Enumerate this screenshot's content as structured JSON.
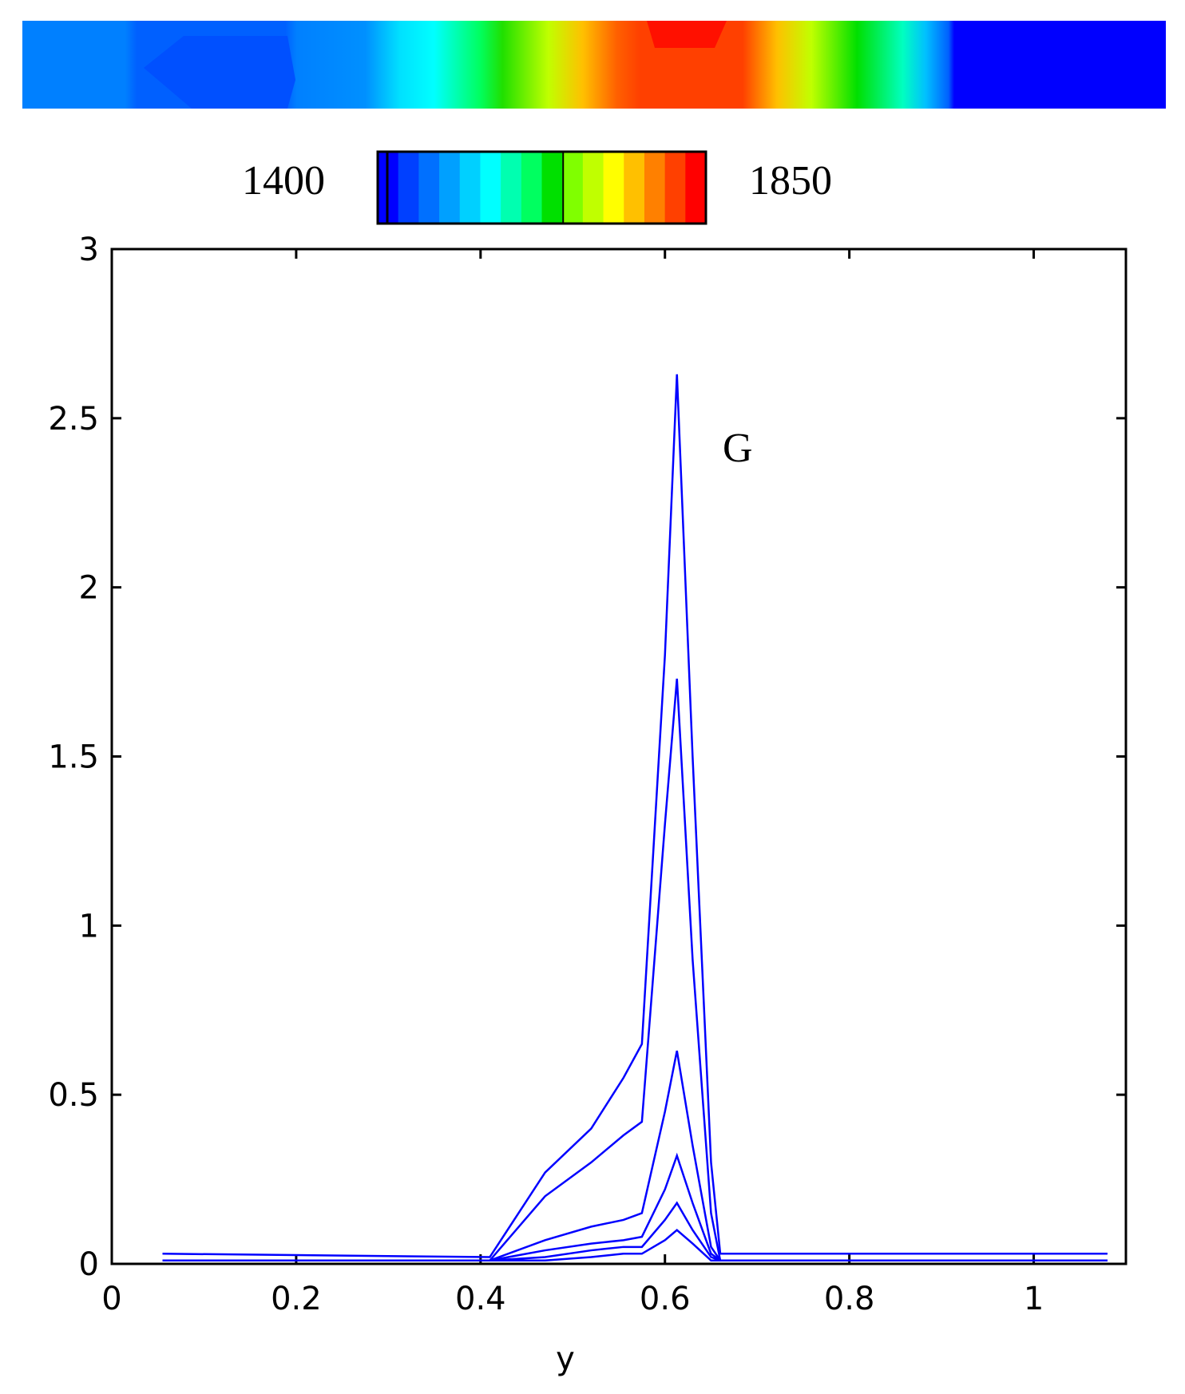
{
  "chart_data": {
    "type": "line",
    "xlabel": "y",
    "annotation": "G",
    "colorbar": {
      "min": 1400,
      "max": 1850,
      "colors": [
        "#0000ff",
        "#0040ff",
        "#0070ff",
        "#00a0ff",
        "#00d0ff",
        "#00ffff",
        "#00ffb0",
        "#00ff60",
        "#00e000",
        "#80ff00",
        "#c0ff00",
        "#ffff00",
        "#ffc000",
        "#ff8000",
        "#ff4000",
        "#ff0000"
      ]
    },
    "x": [
      0.055,
      0.41,
      0.47,
      0.52,
      0.555,
      0.575,
      0.6,
      0.613,
      0.63,
      0.65,
      0.66,
      1.08
    ],
    "series": [
      {
        "color": "#0000ff",
        "values": [
          0.03,
          0.02,
          0.27,
          0.4,
          0.55,
          0.65,
          1.8,
          2.63,
          1.5,
          0.3,
          0.03,
          0.03
        ]
      },
      {
        "color": "#0000ff",
        "values": [
          0.01,
          0.01,
          0.2,
          0.3,
          0.38,
          0.42,
          1.3,
          1.73,
          0.9,
          0.15,
          0.01,
          0.01
        ]
      },
      {
        "color": "#0000ff",
        "values": [
          0.01,
          0.01,
          0.07,
          0.11,
          0.13,
          0.15,
          0.45,
          0.63,
          0.35,
          0.05,
          0.01,
          0.01
        ]
      },
      {
        "color": "#0000ff",
        "values": [
          0.01,
          0.01,
          0.04,
          0.06,
          0.07,
          0.08,
          0.22,
          0.32,
          0.18,
          0.03,
          0.01,
          0.01
        ]
      },
      {
        "color": "#0000ff",
        "values": [
          0.01,
          0.01,
          0.02,
          0.04,
          0.05,
          0.05,
          0.13,
          0.18,
          0.1,
          0.02,
          0.01,
          0.01
        ]
      },
      {
        "color": "#0000ff",
        "values": [
          0.01,
          0.01,
          0.01,
          0.02,
          0.03,
          0.03,
          0.07,
          0.1,
          0.06,
          0.01,
          0.01,
          0.01
        ]
      }
    ],
    "xlim": [
      0,
      1.1
    ],
    "xticks": [
      0,
      0.2,
      0.4,
      0.6,
      0.8,
      1
    ],
    "ylim": [
      0,
      3
    ],
    "yticks": [
      0,
      0.5,
      1,
      1.5,
      2,
      2.5,
      3
    ]
  }
}
